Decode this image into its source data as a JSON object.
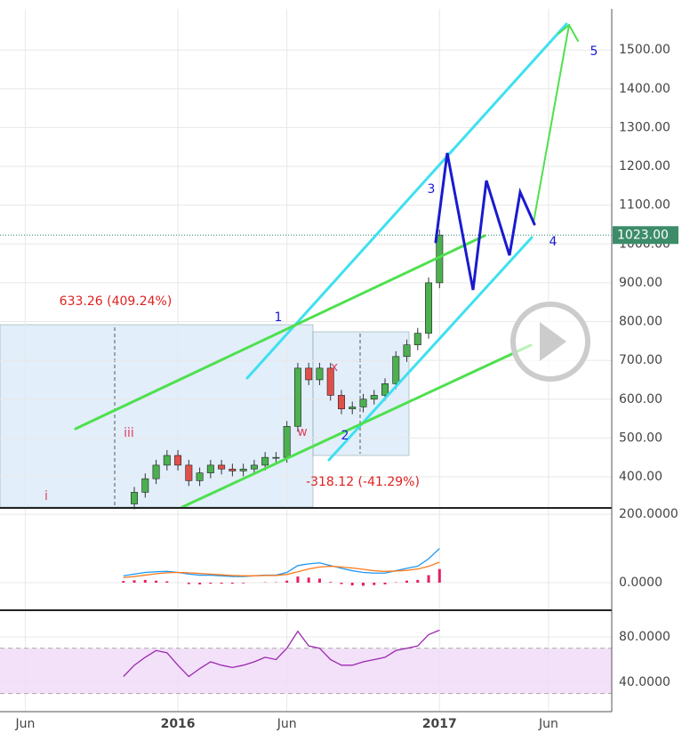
{
  "chart_data": [
    {
      "type": "candlestick",
      "x": [
        -2.5,
        -2,
        -1.5,
        -1,
        -0.5,
        0,
        0.5,
        1,
        1.5,
        2,
        2.5,
        3,
        3.5,
        4,
        4.5,
        5,
        5.5,
        6,
        6.5,
        7,
        7.5,
        8,
        8.5,
        9,
        9.5,
        10,
        10.5,
        11,
        11.5,
        12
      ],
      "values": [
        330,
        360,
        395,
        430,
        455,
        430,
        390,
        410,
        430,
        420,
        415,
        420,
        430,
        450,
        450,
        530,
        680,
        650,
        680,
        610,
        575,
        580,
        600,
        610,
        640,
        710,
        740,
        770,
        900,
        1023
      ],
      "up_color": "#4caf50",
      "down_color": "#e0504a",
      "xlim": [
        -8.16,
        19.9
      ],
      "xticks": [
        {
          "value": -7,
          "label": "Jun"
        },
        {
          "value": 0,
          "label": "2016"
        },
        {
          "value": 5,
          "label": "Jun"
        },
        {
          "value": 12,
          "label": "2017"
        },
        {
          "value": 17,
          "label": "Jun"
        }
      ],
      "ylim": [
        322,
        1606
      ],
      "yticks": [
        {
          "value": 400,
          "label": "400.00"
        },
        {
          "value": 500,
          "label": "500.00"
        },
        {
          "value": 600,
          "label": "600.00"
        },
        {
          "value": 700,
          "label": "700.00"
        },
        {
          "value": 800,
          "label": "800.00"
        },
        {
          "value": 900,
          "label": "900.00"
        },
        {
          "value": 1000,
          "label": "1000.00"
        },
        {
          "value": 1100,
          "label": "1100.00"
        },
        {
          "value": 1200,
          "label": "1200.00"
        },
        {
          "value": 1300,
          "label": "1300.00"
        },
        {
          "value": 1400,
          "label": "1400.00"
        },
        {
          "value": 1500,
          "label": "1500.00"
        }
      ],
      "last_price": {
        "value": 1023,
        "label": "1023.00"
      },
      "grid": true,
      "annotations": [
        "633.26 (409.24%)",
        "-318.12 (-41.29%)",
        "1",
        "2",
        "3",
        "4",
        "5",
        "i",
        "iii",
        "w",
        "x"
      ]
    },
    {
      "type": "macd",
      "x": [
        -2.5,
        -2,
        -1.5,
        -1,
        -0.5,
        0,
        0.5,
        1,
        1.5,
        2,
        2.5,
        3,
        3.5,
        4,
        4.5,
        5,
        5.5,
        6,
        6.5,
        7,
        7.5,
        8,
        8.5,
        9,
        9.5,
        10,
        10.5,
        11,
        11.5,
        12
      ],
      "series": [
        {
          "color": "#2196f3",
          "values": [
            20,
            25,
            30,
            32,
            33,
            30,
            25,
            22,
            22,
            20,
            18,
            18,
            20,
            22,
            22,
            30,
            50,
            55,
            58,
            50,
            42,
            35,
            30,
            28,
            28,
            35,
            42,
            48,
            70,
            100
          ]
        },
        {
          "color": "#ff7a1a",
          "values": [
            15,
            18,
            22,
            26,
            29,
            30,
            29,
            27,
            25,
            23,
            21,
            20,
            20,
            21,
            21,
            24,
            32,
            40,
            46,
            48,
            46,
            43,
            39,
            35,
            33,
            34,
            36,
            40,
            48,
            60
          ]
        },
        {
          "color": "#e91e63",
          "values": [
            5,
            7,
            8,
            6,
            4,
            0,
            -4,
            -5,
            -3,
            -3,
            -3,
            -2,
            0,
            1,
            1,
            6,
            18,
            15,
            12,
            2,
            -4,
            -8,
            -9,
            -7,
            -5,
            1,
            6,
            8,
            22,
            40
          ]
        }
      ],
      "ylim": [
        -78,
        216
      ],
      "yticks": [
        {
          "value": 0,
          "label": "0.0000"
        },
        {
          "value": 200,
          "label": "200.0000"
        }
      ]
    },
    {
      "type": "rsi",
      "x": [
        -2.5,
        -2,
        -1.5,
        -1,
        -0.5,
        0,
        0.5,
        1,
        1.5,
        2,
        2.5,
        3,
        3.5,
        4,
        4.5,
        5,
        5.5,
        6,
        6.5,
        7,
        7.5,
        8,
        8.5,
        9,
        9.5,
        10,
        10.5,
        11,
        11.5,
        12
      ],
      "values": [
        45,
        55,
        62,
        68,
        66,
        55,
        45,
        52,
        58,
        55,
        53,
        55,
        58,
        62,
        60,
        70,
        85,
        72,
        70,
        60,
        55,
        55,
        58,
        60,
        62,
        68,
        70,
        72,
        82,
        86
      ],
      "color": "#9c27b0",
      "band": [
        30,
        70
      ],
      "ylim": [
        14,
        102
      ],
      "yticks": [
        {
          "value": 40,
          "label": "40.0000"
        },
        {
          "value": 80,
          "label": "80.0000"
        }
      ]
    }
  ]
}
